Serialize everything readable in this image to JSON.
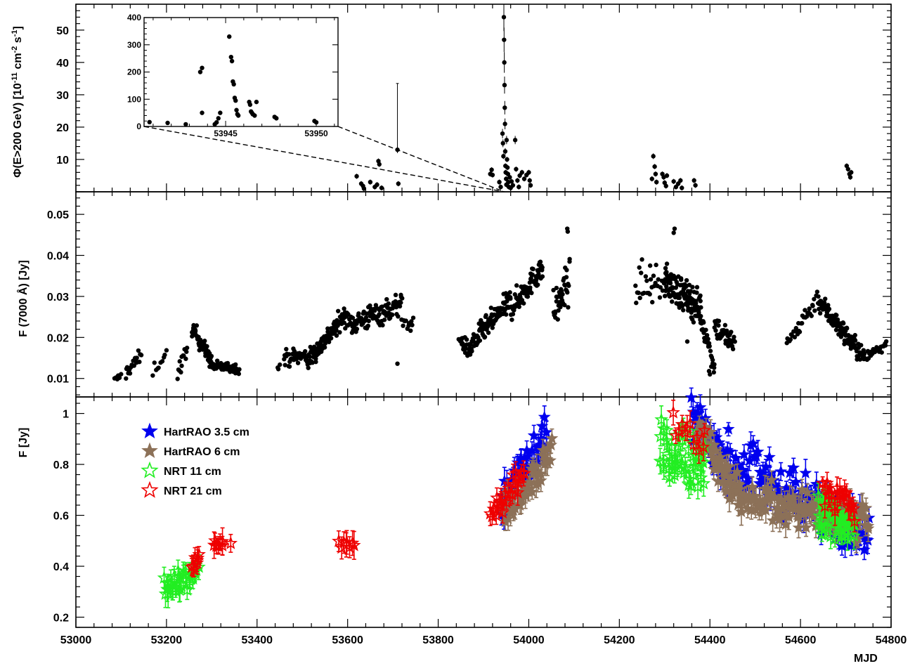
{
  "chart_data": [
    {
      "type": "scatter",
      "panel": "top",
      "xlabel": "MJD",
      "ylabel": "Φ(E>200 GeV) [10⁻¹¹ cm⁻² s⁻¹]",
      "ylabel_parts": {
        "main": "Φ(E>200 GeV) [10",
        "exp1": "-11",
        "mid": " cm",
        "exp2": "-2",
        "mid2": " s",
        "exp3": "-1",
        "end": "]"
      },
      "xlim": [
        53000,
        54800
      ],
      "ylim": [
        0,
        58
      ],
      "yticks": [
        10,
        20,
        30,
        40,
        50
      ],
      "ytick_labels": [
        "10",
        "20",
        "30",
        "40",
        "50"
      ],
      "series": [
        {
          "color": "#000000",
          "marker": "filled-circle",
          "points": [
            [
              53620,
              4.8
            ],
            [
              53630,
              2.5
            ],
            [
              53634,
              1.8
            ],
            [
              53636,
              1.0
            ],
            [
              53650,
              3.0
            ],
            [
              53660,
              1.5
            ],
            [
              53665,
              2.2
            ],
            [
              53668,
              9.5
            ],
            [
              53670,
              8.5
            ],
            [
              53675,
              1.2
            ],
            [
              53710,
              13.0
            ],
            [
              53712,
              2.5
            ],
            [
              53915,
              5.5
            ],
            [
              53918,
              6.8
            ],
            [
              53920,
              5.2
            ],
            [
              53935,
              3.0
            ],
            [
              53938,
              1.5
            ],
            [
              53942,
              18.0
            ],
            [
              53943,
              15.0
            ],
            [
              53944,
              11.0
            ],
            [
              53945,
              54.0
            ],
            [
              53945.5,
              47.0
            ],
            [
              53946,
              40.0
            ],
            [
              53946.5,
              33.0
            ],
            [
              53947,
              26.0
            ],
            [
              53947.5,
              21.0
            ],
            [
              53948,
              12.5
            ],
            [
              53948.5,
              8.0
            ],
            [
              53949,
              6.0
            ],
            [
              53950,
              4.0
            ],
            [
              53950.5,
              2.2
            ],
            [
              53951,
              16.0
            ],
            [
              53952,
              10.0
            ],
            [
              53953,
              7.5
            ],
            [
              53954,
              5.5
            ],
            [
              53955,
              3.0
            ],
            [
              53956,
              1.5
            ],
            [
              53958,
              4.5
            ],
            [
              53960,
              1.2
            ],
            [
              53962,
              3.2
            ],
            [
              53965,
              2.0
            ],
            [
              53970,
              16.0
            ],
            [
              53972,
              7.0
            ],
            [
              53975,
              3.5
            ],
            [
              53978,
              1.5
            ],
            [
              53980,
              5.0
            ],
            [
              53985,
              6.0
            ],
            [
              53990,
              4.0
            ],
            [
              53995,
              5.2
            ],
            [
              54000,
              6.0
            ],
            [
              54002,
              3.5
            ],
            [
              54004,
              2.0
            ],
            [
              54272,
              4.0
            ],
            [
              54275,
              11.0
            ],
            [
              54278,
              7.8
            ],
            [
              54280,
              5.5
            ],
            [
              54282,
              3.0
            ],
            [
              54295,
              5.5
            ],
            [
              54298,
              4.5
            ],
            [
              54300,
              2.8
            ],
            [
              54303,
              1.8
            ],
            [
              54305,
              5.0
            ],
            [
              54320,
              3.2
            ],
            [
              54325,
              1.5
            ],
            [
              54330,
              2.5
            ],
            [
              54335,
              3.5
            ],
            [
              54338,
              1.2
            ],
            [
              54365,
              3.5
            ],
            [
              54368,
              2.0
            ],
            [
              54702,
              8.0
            ],
            [
              54705,
              7.0
            ],
            [
              54708,
              5.5
            ],
            [
              54710,
              4.5
            ],
            [
              54712,
              6.0
            ]
          ]
        }
      ],
      "inset": {
        "xlim": [
          53940.5,
          53951.2
        ],
        "ylim": [
          0,
          400
        ],
        "xticks": [
          53945,
          53950
        ],
        "xtick_labels": [
          "53945",
          "53950"
        ],
        "yticks": [
          0,
          100,
          200,
          300,
          400
        ],
        "ytick_labels": [
          "0",
          "100",
          "200",
          "300",
          "400"
        ],
        "points": [
          [
            53940.8,
            16
          ],
          [
            53941.8,
            13
          ],
          [
            53942.8,
            8
          ],
          [
            53943.6,
            200
          ],
          [
            53943.7,
            215
          ],
          [
            53943.7,
            50
          ],
          [
            53944.4,
            8
          ],
          [
            53944.5,
            15
          ],
          [
            53944.6,
            30
          ],
          [
            53944.7,
            50
          ],
          [
            53945.2,
            330
          ],
          [
            53945.3,
            255
          ],
          [
            53945.35,
            240
          ],
          [
            53945.4,
            165
          ],
          [
            53945.45,
            155
          ],
          [
            53945.5,
            105
          ],
          [
            53945.55,
            95
          ],
          [
            53945.6,
            60
          ],
          [
            53945.65,
            45
          ],
          [
            53945.7,
            40
          ],
          [
            53946.3,
            90
          ],
          [
            53946.35,
            80
          ],
          [
            53946.4,
            55
          ],
          [
            53946.45,
            50
          ],
          [
            53946.5,
            45
          ],
          [
            53946.6,
            40
          ],
          [
            53946.7,
            90
          ],
          [
            53947.7,
            35
          ],
          [
            53947.8,
            30
          ],
          [
            53949.9,
            20
          ],
          [
            53950.0,
            15
          ]
        ]
      }
    },
    {
      "type": "scatter",
      "panel": "middle",
      "ylabel": "F (7000 Å) [Jy]",
      "xlim": [
        53000,
        54800
      ],
      "ylim": [
        0.0055,
        0.0555
      ],
      "yticks": [
        0.01,
        0.02,
        0.03,
        0.04,
        0.05
      ],
      "ytick_labels": [
        "0.01",
        "0.02",
        "0.03",
        "0.04",
        "0.05"
      ],
      "segments": [
        {
          "x0": 53085,
          "x1": 53100,
          "y0": 0.0095,
          "y1": 0.0105,
          "n": 6,
          "noise": 0.0005
        },
        {
          "x0": 53110,
          "x1": 53145,
          "y0": 0.0115,
          "y1": 0.0155,
          "n": 22,
          "noise": 0.0009
        },
        {
          "x0": 53170,
          "x1": 53200,
          "y0": 0.012,
          "y1": 0.016,
          "n": 10,
          "noise": 0.0008
        },
        {
          "x0": 53225,
          "x1": 53245,
          "y0": 0.0115,
          "y1": 0.0165,
          "n": 14,
          "noise": 0.001
        },
        {
          "x0": 53256,
          "x1": 53300,
          "y0": 0.0225,
          "y1": 0.014,
          "n": 55,
          "noise": 0.001
        },
        {
          "x0": 53300,
          "x1": 53360,
          "y0": 0.013,
          "y1": 0.0125,
          "n": 55,
          "noise": 0.0006
        },
        {
          "x0": 53445,
          "x1": 53450,
          "y0": 0.0125,
          "y1": 0.013,
          "n": 3,
          "noise": 0.0003
        },
        {
          "x0": 53460,
          "x1": 53510,
          "y0": 0.015,
          "y1": 0.0155,
          "n": 40,
          "noise": 0.001
        },
        {
          "x0": 53510,
          "x1": 53600,
          "y0": 0.014,
          "y1": 0.026,
          "n": 110,
          "noise": 0.0012
        },
        {
          "x0": 53600,
          "x1": 53720,
          "y0": 0.023,
          "y1": 0.028,
          "n": 110,
          "noise": 0.0015
        },
        {
          "x0": 53720,
          "x1": 53745,
          "y0": 0.024,
          "y1": 0.023,
          "n": 12,
          "noise": 0.0008
        },
        {
          "x0": 53845,
          "x1": 53870,
          "y0": 0.02,
          "y1": 0.0165,
          "n": 25,
          "noise": 0.001
        },
        {
          "x0": 53870,
          "x1": 53960,
          "y0": 0.018,
          "y1": 0.029,
          "n": 100,
          "noise": 0.0014
        },
        {
          "x0": 53960,
          "x1": 54030,
          "y0": 0.027,
          "y1": 0.037,
          "n": 90,
          "noise": 0.0015
        },
        {
          "x0": 54055,
          "x1": 54090,
          "y0": 0.026,
          "y1": 0.034,
          "n": 40,
          "noise": 0.0025
        },
        {
          "x0": 54235,
          "x1": 54300,
          "y0": 0.032,
          "y1": 0.033,
          "n": 30,
          "noise": 0.002
        },
        {
          "x0": 54300,
          "x1": 54380,
          "y0": 0.034,
          "y1": 0.027,
          "n": 130,
          "noise": 0.002
        },
        {
          "x0": 54380,
          "x1": 54410,
          "y0": 0.025,
          "y1": 0.013,
          "n": 30,
          "noise": 0.0015
        },
        {
          "x0": 54410,
          "x1": 54455,
          "y0": 0.023,
          "y1": 0.018,
          "n": 40,
          "noise": 0.0015
        },
        {
          "x0": 54570,
          "x1": 54640,
          "y0": 0.0185,
          "y1": 0.03,
          "n": 35,
          "noise": 0.0012
        },
        {
          "x0": 54640,
          "x1": 54740,
          "y0": 0.029,
          "y1": 0.015,
          "n": 120,
          "noise": 0.0013
        },
        {
          "x0": 54740,
          "x1": 54790,
          "y0": 0.015,
          "y1": 0.0185,
          "n": 25,
          "noise": 0.0008
        }
      ],
      "outliers": [
        [
          53710,
          0.0136
        ],
        [
          54085,
          0.0465
        ],
        [
          54086,
          0.0458
        ],
        [
          54322,
          0.0465
        ],
        [
          54320,
          0.0455
        ],
        [
          54400,
          0.011
        ],
        [
          54398,
          0.0118
        ],
        [
          54350,
          0.019
        ],
        [
          54250,
          0.039
        ],
        [
          54268,
          0.0375
        ]
      ]
    },
    {
      "type": "scatter",
      "panel": "bottom",
      "ylabel": "F [Jy]",
      "xlim": [
        53000,
        54800
      ],
      "ylim": [
        0.16,
        1.065
      ],
      "yticks": [
        0.2,
        0.4,
        0.6,
        0.8,
        1.0
      ],
      "ytick_labels": [
        "0.2",
        "0.4",
        "0.6",
        "0.8",
        "1"
      ],
      "legend_position": "top-left",
      "series": [
        {
          "name": "HartRAO 3.5 cm",
          "color": "#0000ee",
          "marker": "filled-star",
          "segments": [
            {
              "x0": 53940,
              "x1": 54040,
              "y0": 0.67,
              "y1": 0.9,
              "n": 45,
              "noise": 0.04
            },
            {
              "x0": 54360,
              "x1": 54440,
              "y0": 0.98,
              "y1": 0.82,
              "n": 40,
              "noise": 0.04
            },
            {
              "x0": 54440,
              "x1": 54750,
              "y0": 0.8,
              "y1": 0.55,
              "n": 110,
              "noise": 0.05
            }
          ]
        },
        {
          "name": "HartRAO 6 cm",
          "color": "#8c7158",
          "marker": "filled-star",
          "segments": [
            {
              "x0": 53940,
              "x1": 54050,
              "y0": 0.62,
              "y1": 0.84,
              "n": 50,
              "noise": 0.035
            },
            {
              "x0": 54370,
              "x1": 54470,
              "y0": 0.95,
              "y1": 0.66,
              "n": 55,
              "noise": 0.035
            },
            {
              "x0": 54470,
              "x1": 54750,
              "y0": 0.66,
              "y1": 0.58,
              "n": 120,
              "noise": 0.04
            }
          ]
        },
        {
          "name": "NRT 11 cm",
          "color": "#22ee22",
          "marker": "open-star",
          "segments": [
            {
              "x0": 53195,
              "x1": 53270,
              "y0": 0.31,
              "y1": 0.37,
              "n": 32,
              "noise": 0.035
            },
            {
              "x0": 54290,
              "x1": 54390,
              "y0": 0.85,
              "y1": 0.8,
              "n": 50,
              "noise": 0.055
            },
            {
              "x0": 54640,
              "x1": 54720,
              "y0": 0.62,
              "y1": 0.55,
              "n": 45,
              "noise": 0.045
            }
          ]
        },
        {
          "name": "NRT 21 cm",
          "color": "#ee0000",
          "marker": "open-star",
          "segments": [
            {
              "x0": 53258,
              "x1": 53272,
              "y0": 0.38,
              "y1": 0.44,
              "n": 8,
              "noise": 0.02
            },
            {
              "x0": 53305,
              "x1": 53325,
              "y0": 0.47,
              "y1": 0.5,
              "n": 8,
              "noise": 0.015
            },
            {
              "x0": 53340,
              "x1": 53345,
              "y0": 0.49,
              "y1": 0.49,
              "n": 1,
              "noise": 0.0
            },
            {
              "x0": 53580,
              "x1": 53615,
              "y0": 0.49,
              "y1": 0.48,
              "n": 8,
              "noise": 0.01
            },
            {
              "x0": 53915,
              "x1": 53990,
              "y0": 0.6,
              "y1": 0.76,
              "n": 25,
              "noise": 0.03
            },
            {
              "x0": 54320,
              "x1": 54390,
              "y0": 0.97,
              "y1": 0.87,
              "n": 12,
              "noise": 0.03
            },
            {
              "x0": 54650,
              "x1": 54720,
              "y0": 0.72,
              "y1": 0.62,
              "n": 25,
              "noise": 0.035
            }
          ]
        }
      ]
    }
  ],
  "shared_x": {
    "label": "MJD",
    "ticks": [
      53000,
      53200,
      53400,
      53600,
      53800,
      54000,
      54200,
      54400,
      54600,
      54800
    ],
    "tick_labels": [
      "53000",
      "53200",
      "53400",
      "53600",
      "53800",
      "54000",
      "54200",
      "54400",
      "54600",
      "54800"
    ]
  },
  "colors": {
    "axis": "#000000",
    "background": "#ffffff"
  }
}
